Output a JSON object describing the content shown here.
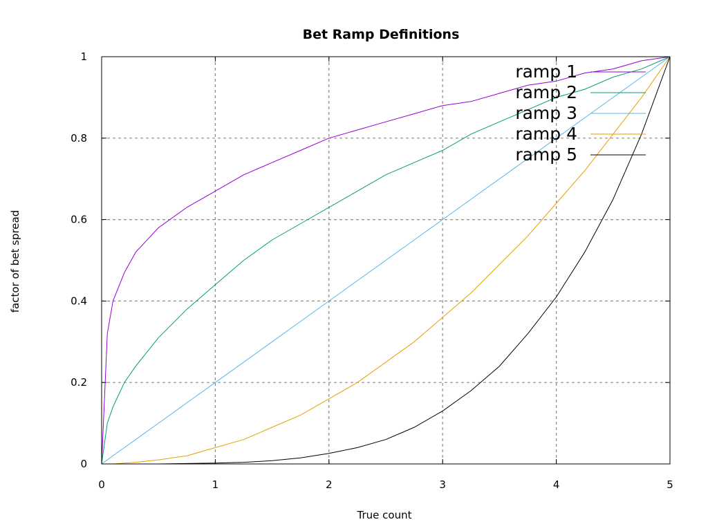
{
  "chart_data": {
    "type": "line",
    "title": "Bet Ramp Definitions",
    "xlabel": "True count",
    "ylabel": "factor of bet spread",
    "xlim": [
      0,
      5
    ],
    "ylim": [
      0,
      1
    ],
    "xticks": [
      0,
      1,
      2,
      3,
      4,
      5
    ],
    "xtick_labels": [
      "0",
      "1",
      "2",
      "3",
      "4",
      "5"
    ],
    "yticks": [
      0,
      0.2,
      0.4,
      0.6,
      0.8,
      1
    ],
    "ytick_labels": [
      "0",
      "0.2",
      "0.4",
      "0.6",
      "0.8",
      "1"
    ],
    "grid": true,
    "legend_position": "top-right",
    "x": [
      0,
      0.05,
      0.1,
      0.2,
      0.3,
      0.5,
      0.75,
      1,
      1.25,
      1.5,
      1.75,
      2,
      2.25,
      2.5,
      2.75,
      3,
      3.25,
      3.5,
      3.75,
      4,
      4.25,
      4.5,
      4.75,
      5
    ],
    "series": [
      {
        "name": "ramp 1",
        "color": "#9400d3",
        "values": [
          0,
          0.32,
          0.4,
          0.47,
          0.52,
          0.58,
          0.63,
          0.67,
          0.71,
          0.74,
          0.77,
          0.8,
          0.82,
          0.84,
          0.86,
          0.88,
          0.89,
          0.91,
          0.93,
          0.94,
          0.96,
          0.97,
          0.99,
          1
        ]
      },
      {
        "name": "ramp 2",
        "color": "#009e73",
        "values": [
          0,
          0.1,
          0.14,
          0.2,
          0.24,
          0.31,
          0.38,
          0.44,
          0.5,
          0.55,
          0.59,
          0.63,
          0.67,
          0.71,
          0.74,
          0.77,
          0.81,
          0.84,
          0.87,
          0.9,
          0.92,
          0.95,
          0.97,
          1
        ]
      },
      {
        "name": "ramp 3",
        "color": "#56b4e9",
        "values": [
          0,
          0.01,
          0.02,
          0.04,
          0.06,
          0.1,
          0.15,
          0.2,
          0.25,
          0.3,
          0.35,
          0.4,
          0.45,
          0.5,
          0.55,
          0.6,
          0.65,
          0.7,
          0.75,
          0.8,
          0.85,
          0.9,
          0.95,
          1
        ]
      },
      {
        "name": "ramp 4",
        "color": "#e69f00",
        "values": [
          0,
          0,
          0,
          0.002,
          0.004,
          0.01,
          0.02,
          0.04,
          0.06,
          0.09,
          0.12,
          0.16,
          0.2,
          0.25,
          0.3,
          0.36,
          0.42,
          0.49,
          0.56,
          0.64,
          0.72,
          0.81,
          0.9,
          1
        ]
      },
      {
        "name": "ramp 5",
        "color": "#000000",
        "values": [
          0,
          0,
          0,
          0,
          0,
          0,
          0.001,
          0.002,
          0.004,
          0.008,
          0.015,
          0.026,
          0.04,
          0.06,
          0.09,
          0.13,
          0.18,
          0.24,
          0.32,
          0.41,
          0.52,
          0.65,
          0.81,
          1
        ]
      }
    ]
  }
}
